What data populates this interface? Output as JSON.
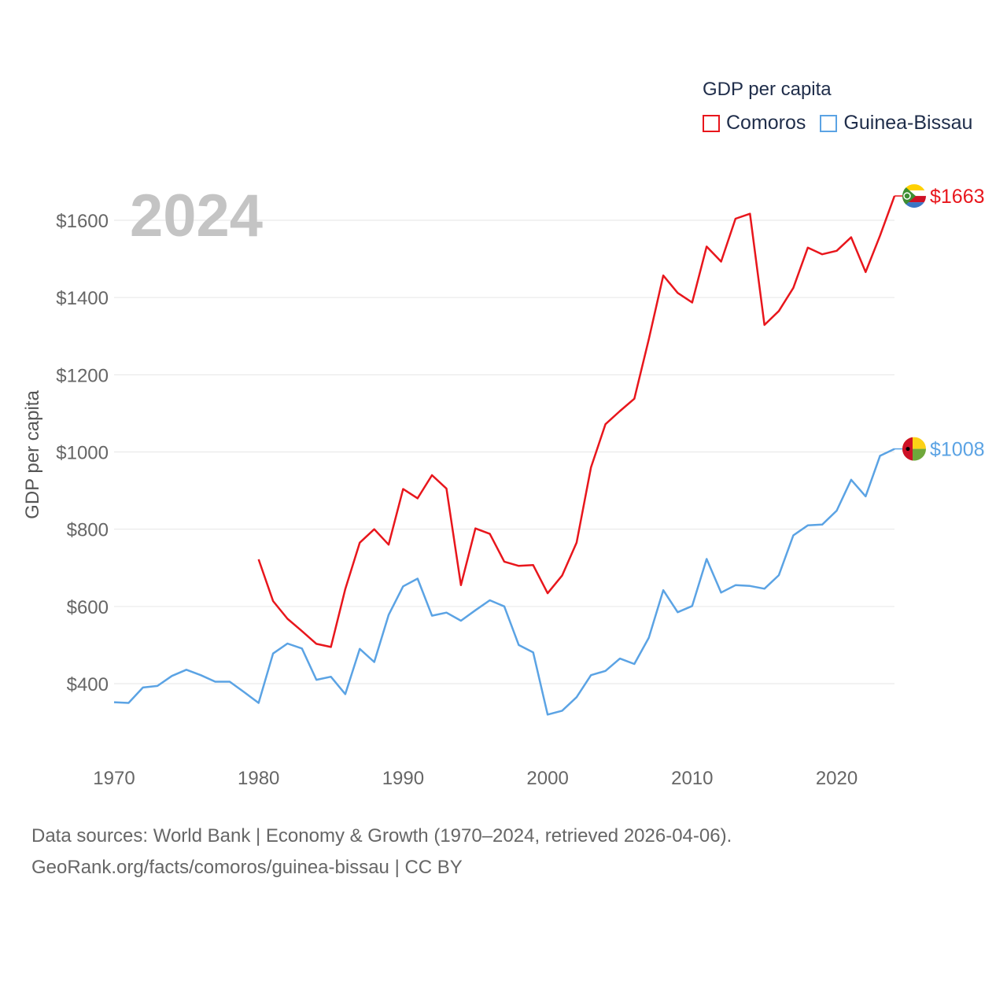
{
  "legend": {
    "title": "GDP per capita",
    "items": [
      {
        "name": "Comoros",
        "color": "#e8161c"
      },
      {
        "name": "Guinea-Bissau",
        "color": "#5ba3e4"
      }
    ]
  },
  "footer": {
    "line1": "Data sources: World Bank | Economy & Growth (1970–2024, retrieved 2026-04-06).",
    "line2": "GeoRank.org/facts/comoros/guinea-bissau | CC BY"
  },
  "chart_data": {
    "type": "line",
    "year_label": "2024",
    "ylabel": "GDP per capita",
    "xlabel": "",
    "xlim": [
      1970,
      2024
    ],
    "ylim": [
      260,
      1720
    ],
    "xticks": [
      1970,
      1980,
      1990,
      2000,
      2010,
      2020
    ],
    "yticks": [
      400,
      600,
      800,
      1000,
      1200,
      1400,
      1600
    ],
    "ytick_labels": [
      "$400",
      "$600",
      "$800",
      "$1000",
      "$1200",
      "$1400",
      "$1600"
    ],
    "grid": true,
    "series": [
      {
        "name": "Comoros",
        "color": "#e8161c",
        "end_label": "$1663",
        "x": [
          1980,
          1981,
          1982,
          1983,
          1984,
          1985,
          1986,
          1987,
          1988,
          1989,
          1990,
          1991,
          1992,
          1993,
          1994,
          1995,
          1996,
          1997,
          1998,
          1999,
          2000,
          2001,
          2002,
          2003,
          2004,
          2005,
          2006,
          2007,
          2008,
          2009,
          2010,
          2011,
          2012,
          2013,
          2014,
          2015,
          2016,
          2017,
          2018,
          2019,
          2020,
          2021,
          2022,
          2023,
          2024
        ],
        "values": [
          722,
          614,
          568,
          536,
          503,
          495,
          645,
          765,
          800,
          760,
          904,
          880,
          940,
          905,
          655,
          802,
          788,
          716,
          705,
          707,
          634,
          680,
          765,
          960,
          1072,
          1106,
          1138,
          1292,
          1457,
          1412,
          1387,
          1532,
          1493,
          1604,
          1617,
          1329,
          1365,
          1425,
          1529,
          1512,
          1521,
          1556,
          1466,
          1560,
          1663
        ]
      },
      {
        "name": "Guinea-Bissau",
        "color": "#5ba3e4",
        "end_label": "$1008",
        "x": [
          1970,
          1971,
          1972,
          1973,
          1974,
          1975,
          1976,
          1977,
          1978,
          1979,
          1980,
          1981,
          1982,
          1983,
          1984,
          1985,
          1986,
          1987,
          1988,
          1989,
          1990,
          1991,
          1992,
          1993,
          1994,
          1995,
          1996,
          1997,
          1998,
          1999,
          2000,
          2001,
          2002,
          2003,
          2004,
          2005,
          2006,
          2007,
          2008,
          2009,
          2010,
          2011,
          2012,
          2013,
          2014,
          2015,
          2016,
          2017,
          2018,
          2019,
          2020,
          2021,
          2022,
          2023,
          2024
        ],
        "values": [
          352,
          350,
          390,
          394,
          420,
          436,
          422,
          405,
          405,
          378,
          350,
          478,
          504,
          491,
          410,
          418,
          373,
          490,
          456,
          578,
          652,
          672,
          576,
          584,
          563,
          590,
          616,
          600,
          500,
          481,
          320,
          330,
          365,
          422,
          433,
          465,
          451,
          519,
          642,
          585,
          601,
          723,
          636,
          655,
          653,
          646,
          681,
          784,
          810,
          812,
          848,
          928,
          885,
          990,
          1008
        ]
      }
    ]
  }
}
